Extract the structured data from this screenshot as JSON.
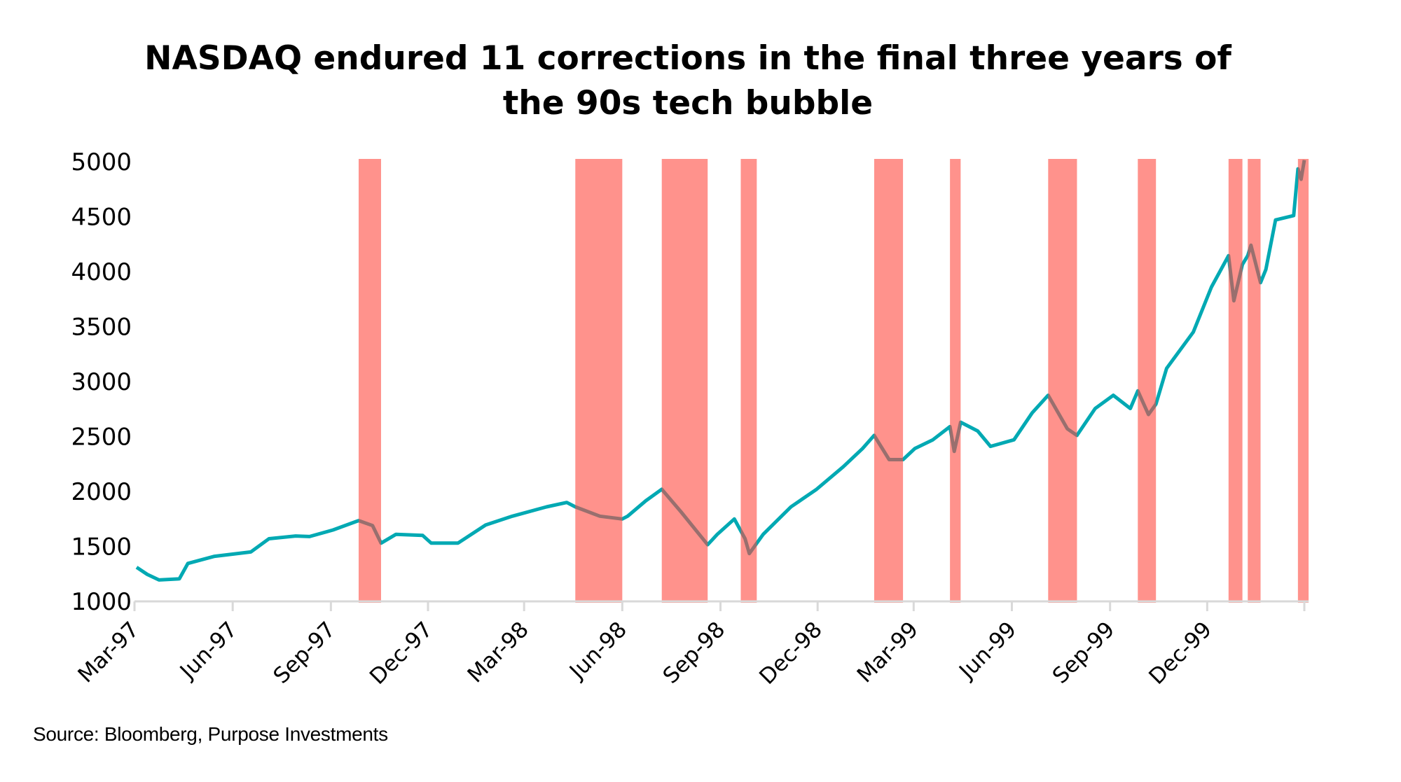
{
  "chart_data": {
    "type": "line",
    "title": "NASDAQ endured 11 corrections in the final three years of the 90s tech bubble",
    "title_lines": [
      "NASDAQ endured 11 corrections in the final three years of",
      "the 90s tech bubble"
    ],
    "xlabel": "",
    "ylabel": "",
    "ylim": [
      1000,
      5000
    ],
    "yticks": [
      1000,
      1500,
      2000,
      2500,
      3000,
      3500,
      4000,
      4500,
      5000
    ],
    "xlim": [
      "1997-03-01",
      "2000-03-01"
    ],
    "xticks": [
      {
        "date": "1997-03-01",
        "label": "Mar-97"
      },
      {
        "date": "1997-06-01",
        "label": "Jun-97"
      },
      {
        "date": "1997-09-01",
        "label": "Sep-97"
      },
      {
        "date": "1997-12-01",
        "label": "Dec-97"
      },
      {
        "date": "1998-03-01",
        "label": "Mar-98"
      },
      {
        "date": "1998-06-01",
        "label": "Jun-98"
      },
      {
        "date": "1998-09-01",
        "label": "Sep-98"
      },
      {
        "date": "1998-12-01",
        "label": "Dec-98"
      },
      {
        "date": "1999-03-01",
        "label": "Mar-99"
      },
      {
        "date": "1999-06-01",
        "label": "Jun-99"
      },
      {
        "date": "1999-09-01",
        "label": "Sep-99"
      },
      {
        "date": "1999-12-01",
        "label": "Dec-99"
      },
      {
        "date": "2000-03-01",
        "label": ""
      }
    ],
    "grid": false,
    "legend": "none",
    "line_color": "#00a9b3",
    "band_color": "#ff4a3f",
    "series": [
      {
        "x": [
          "1997-03-03",
          "1997-03-13",
          "1997-03-24",
          "1997-04-12",
          "1997-04-20",
          "1997-05-15",
          "1997-06-18",
          "1997-07-05",
          "1997-07-30",
          "1997-08-12",
          "1997-09-03",
          "1997-09-27",
          "1997-10-10",
          "1997-10-18",
          "1997-11-01",
          "1997-11-26",
          "1997-12-04",
          "1997-12-29",
          "1998-01-24",
          "1998-02-18",
          "1998-03-22",
          "1998-04-10",
          "1998-04-18",
          "1998-05-11",
          "1998-06-01",
          "1998-06-06",
          "1998-06-23",
          "1998-07-08",
          "1998-07-26",
          "1998-08-20",
          "1998-08-29",
          "1998-09-14",
          "1998-09-24",
          "1998-09-28",
          "1998-10-11",
          "1998-11-06",
          "1998-11-30",
          "1998-12-25",
          "1999-01-12",
          "1999-01-23",
          "1999-02-06",
          "1999-02-19",
          "1999-03-02",
          "1999-03-19",
          "1999-04-04",
          "1999-04-08",
          "1999-04-14",
          "1999-04-30",
          "1999-05-12",
          "1999-06-03",
          "1999-06-20",
          "1999-07-05",
          "1999-07-23",
          "1999-08-01",
          "1999-08-18",
          "1999-09-04",
          "1999-09-20",
          "1999-09-27",
          "1999-10-07",
          "1999-10-14",
          "1999-10-24",
          "1999-11-18",
          "1999-12-05",
          "1999-12-21",
          "1999-12-26",
          "2000-01-03",
          "2000-01-08",
          "2000-01-11",
          "2000-01-20",
          "2000-01-25",
          "2000-02-03",
          "2000-02-20",
          "2000-02-24",
          "2000-02-27",
          "2000-03-01"
        ],
        "values": [
          1310,
          1245,
          1195,
          1205,
          1345,
          1410,
          1450,
          1570,
          1595,
          1590,
          1650,
          1735,
          1690,
          1530,
          1610,
          1600,
          1530,
          1530,
          1695,
          1775,
          1860,
          1900,
          1860,
          1775,
          1750,
          1775,
          1915,
          2020,
          1815,
          1515,
          1610,
          1750,
          1570,
          1435,
          1610,
          1860,
          2020,
          2225,
          2390,
          2510,
          2290,
          2290,
          2390,
          2470,
          2590,
          2365,
          2630,
          2550,
          2410,
          2470,
          2715,
          2875,
          2570,
          2510,
          2755,
          2875,
          2755,
          2915,
          2700,
          2795,
          3120,
          3450,
          3860,
          4145,
          3735,
          4065,
          4145,
          4240,
          3900,
          4020,
          4470,
          4510,
          4935,
          4840,
          5015
        ]
      }
    ],
    "correction_periods": [
      [
        "1997-09-27",
        "1997-10-18"
      ],
      [
        "1998-04-18",
        "1998-06-01"
      ],
      [
        "1998-07-08",
        "1998-08-20"
      ],
      [
        "1998-09-20",
        "1998-10-05"
      ],
      [
        "1999-01-23",
        "1999-02-19"
      ],
      [
        "1999-04-04",
        "1999-04-14"
      ],
      [
        "1999-07-05",
        "1999-08-01"
      ],
      [
        "1999-09-27",
        "1999-10-14"
      ],
      [
        "1999-12-21",
        "2000-01-03"
      ],
      [
        "2000-01-08",
        "2000-01-20"
      ],
      [
        "2000-02-24",
        "2000-03-05"
      ]
    ]
  },
  "source": "Source: Bloomberg, Purpose Investments"
}
